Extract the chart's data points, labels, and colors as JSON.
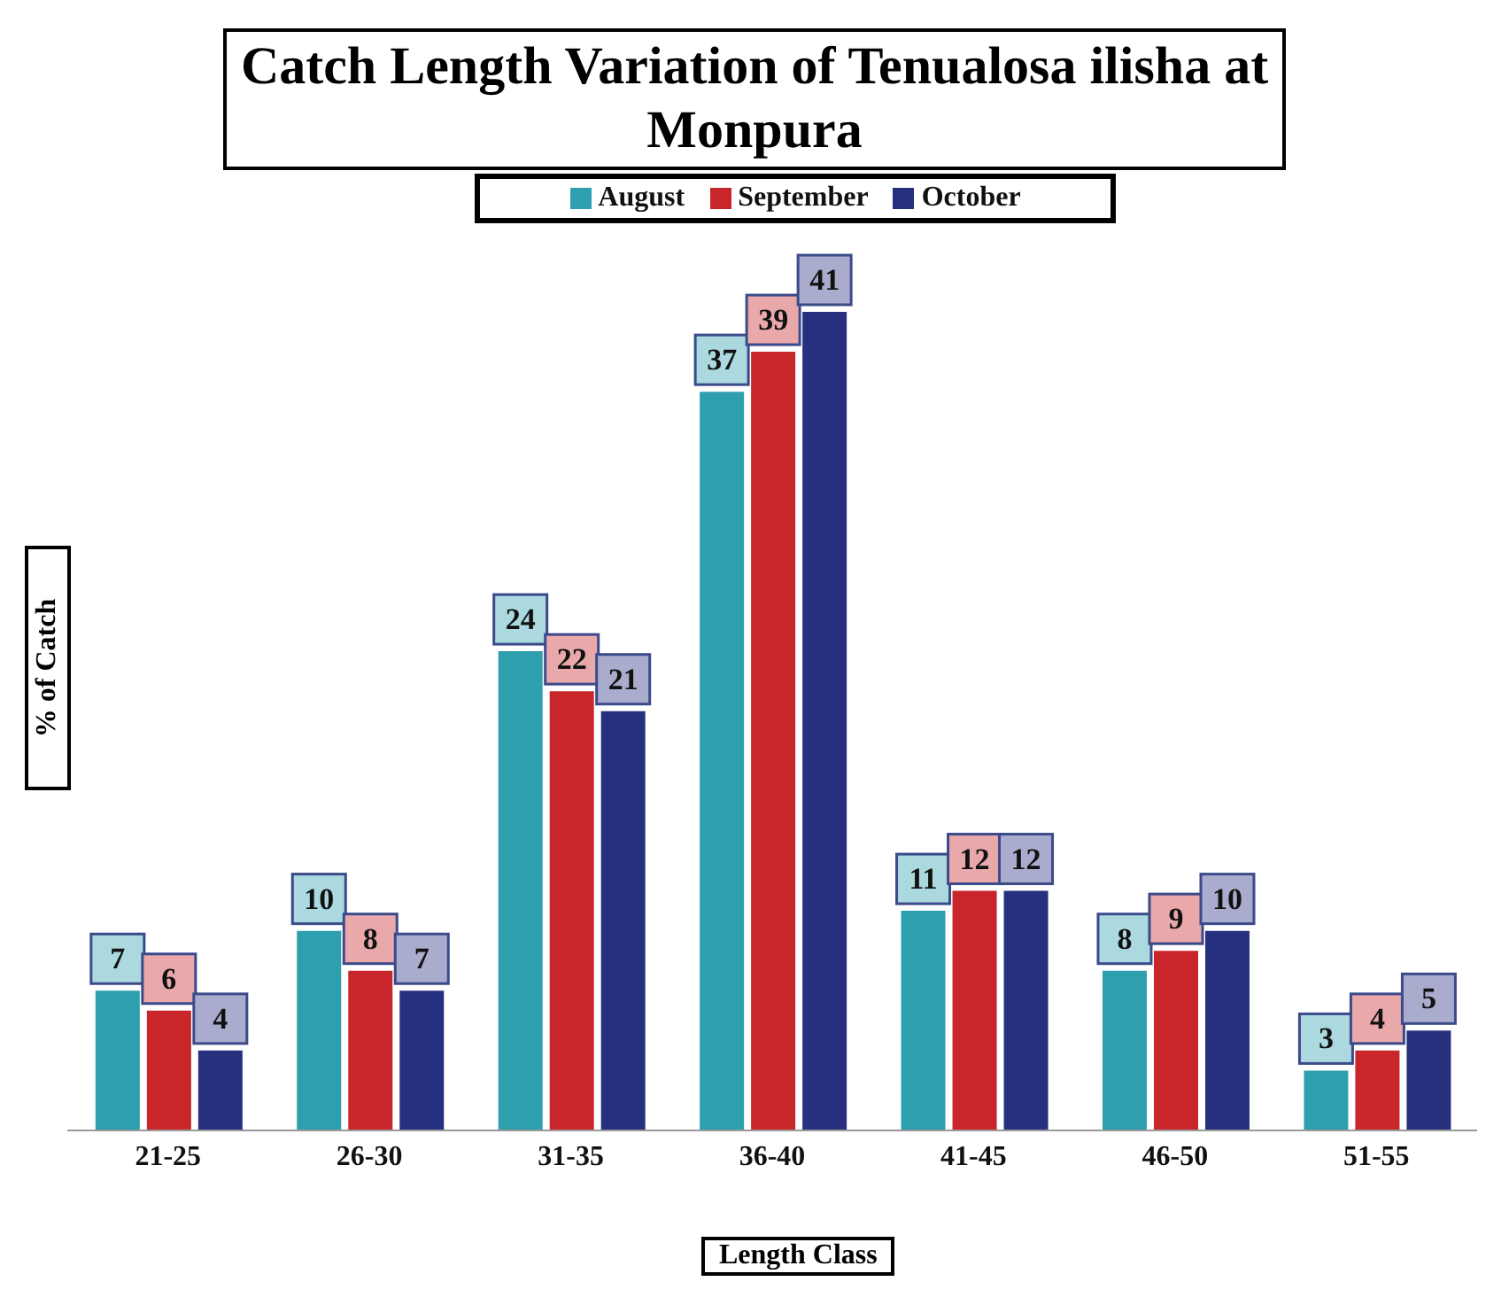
{
  "chart_data": {
    "type": "bar",
    "title": "Catch Length Variation of Tenualosa ilisha at Monpura",
    "xlabel": "Length Class",
    "ylabel": "% of Catch",
    "categories": [
      "21-25",
      "26-30",
      "31-35",
      "36-40",
      "41-45",
      "46-50",
      "51-55"
    ],
    "series": [
      {
        "name": "August",
        "color": "#2e9fae",
        "values": [
          7,
          10,
          24,
          37,
          11,
          8,
          3
        ]
      },
      {
        "name": "September",
        "color": "#c8262a",
        "values": [
          6,
          8,
          22,
          39,
          12,
          9,
          4
        ]
      },
      {
        "name": "October",
        "color": "#27307f",
        "values": [
          4,
          7,
          21,
          41,
          12,
          10,
          5
        ]
      }
    ],
    "data_labels": true,
    "legend": "top",
    "grid": false
  }
}
